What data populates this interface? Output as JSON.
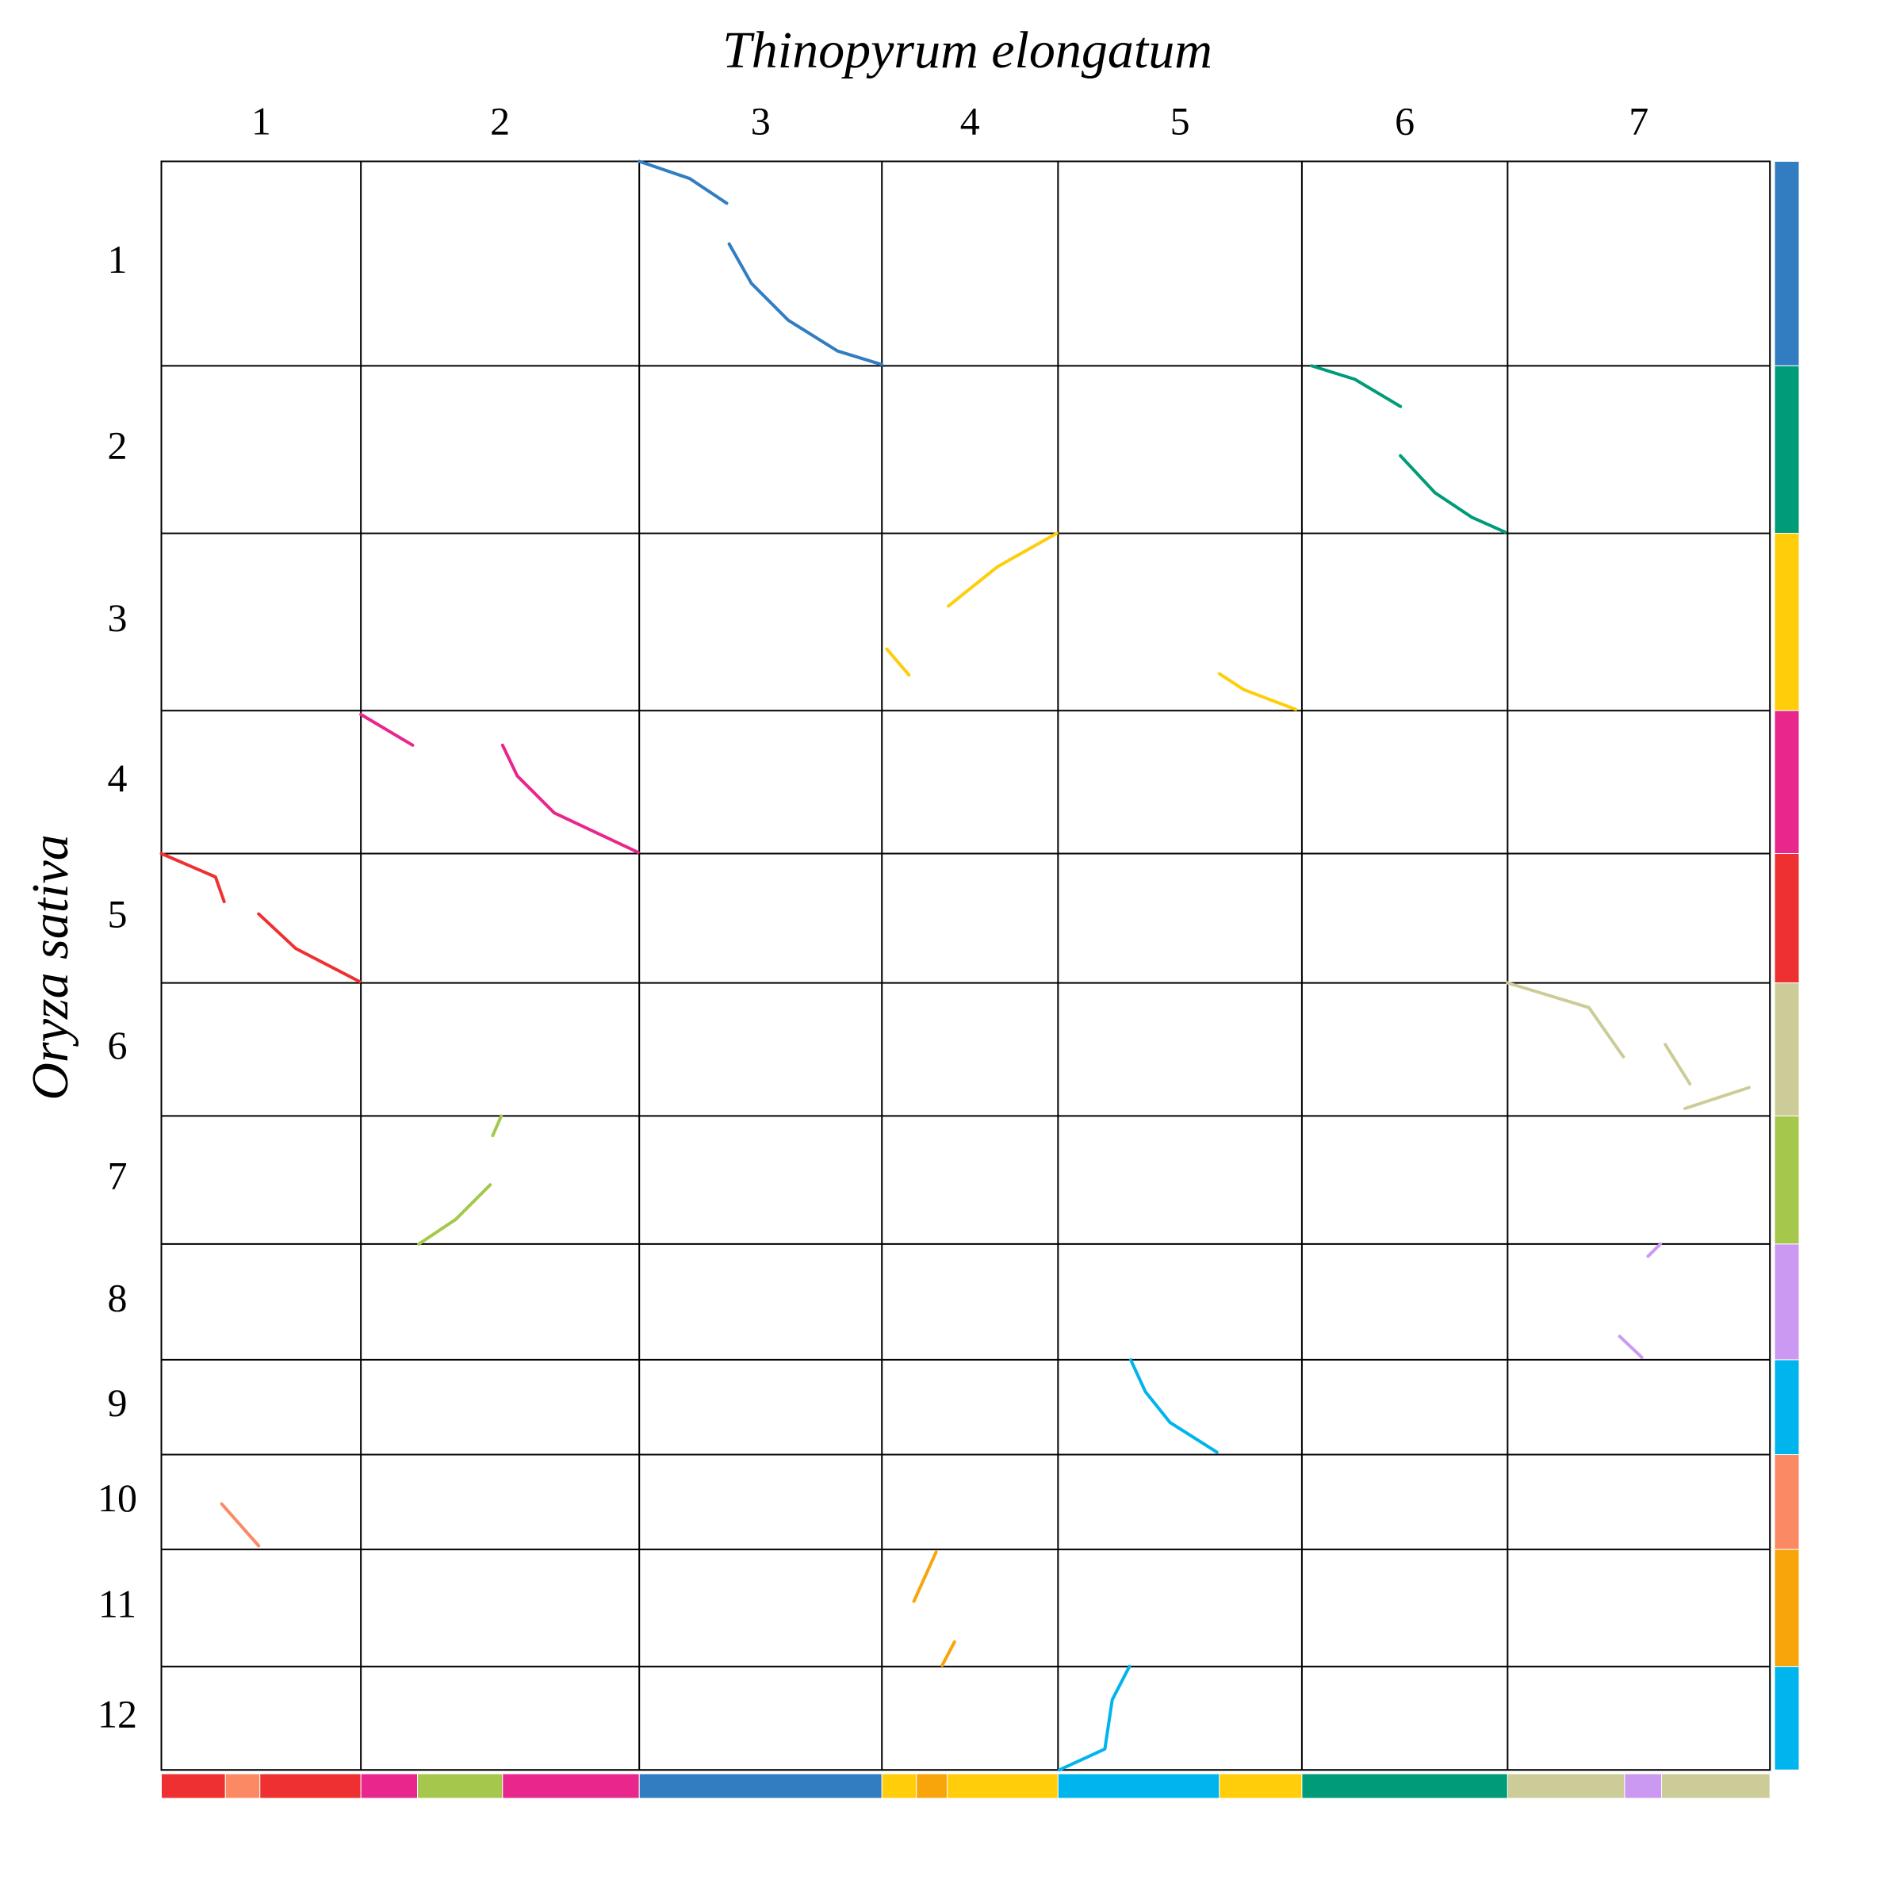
{
  "chart_data": {
    "type": "dotplot",
    "title": "Thinopyrum elongatum",
    "y_label": "Oryza sativa",
    "xlim": [
      0,
      1306
    ],
    "ylim": [
      0,
      1306
    ],
    "columns": [
      {
        "name": "1",
        "length": 162
      },
      {
        "name": "2",
        "length": 226
      },
      {
        "name": "3",
        "length": 197
      },
      {
        "name": "4",
        "length": 143
      },
      {
        "name": "5",
        "length": 198
      },
      {
        "name": "6",
        "length": 167
      },
      {
        "name": "7",
        "length": 213
      }
    ],
    "rows": [
      {
        "name": "1",
        "length": 166,
        "color": "#327dc2"
      },
      {
        "name": "2",
        "length": 136,
        "color": "#009b78"
      },
      {
        "name": "3",
        "length": 144,
        "color": "#ffcd0a"
      },
      {
        "name": "4",
        "length": 116,
        "color": "#e9268c"
      },
      {
        "name": "5",
        "length": 105,
        "color": "#ee3030"
      },
      {
        "name": "6",
        "length": 108,
        "color": "#cccc99"
      },
      {
        "name": "7",
        "length": 104,
        "color": "#a5c84c"
      },
      {
        "name": "8",
        "length": 94,
        "color": "#cc99f2"
      },
      {
        "name": "9",
        "length": 77,
        "color": "#00b4ee"
      },
      {
        "name": "10",
        "length": 77,
        "color": "#fb8a64"
      },
      {
        "name": "11",
        "length": 95,
        "color": "#f8a40b"
      },
      {
        "name": "12",
        "length": 84,
        "color": "#00b4ee"
      }
    ],
    "x_bands": [
      {
        "start": 0,
        "end": 52,
        "color": "#ee3030"
      },
      {
        "start": 52,
        "end": 80,
        "color": "#fb8a64"
      },
      {
        "start": 80,
        "end": 162,
        "color": "#ee3030"
      },
      {
        "start": 162,
        "end": 208,
        "color": "#e9268c"
      },
      {
        "start": 208,
        "end": 277,
        "color": "#a5c84c"
      },
      {
        "start": 277,
        "end": 388,
        "color": "#e9268c"
      },
      {
        "start": 388,
        "end": 585,
        "color": "#327dc2"
      },
      {
        "start": 585,
        "end": 613,
        "color": "#ffcd0a"
      },
      {
        "start": 613,
        "end": 638,
        "color": "#f8a40b"
      },
      {
        "start": 638,
        "end": 728,
        "color": "#ffcd0a"
      },
      {
        "start": 728,
        "end": 859,
        "color": "#00b4ee"
      },
      {
        "start": 859,
        "end": 926,
        "color": "#ffcd0a"
      },
      {
        "start": 926,
        "end": 1093,
        "color": "#009b78"
      },
      {
        "start": 1093,
        "end": 1188,
        "color": "#cccc99"
      },
      {
        "start": 1188,
        "end": 1218,
        "color": "#cc99f2"
      },
      {
        "start": 1218,
        "end": 1306,
        "color": "#cccc99"
      }
    ],
    "segments": [
      {
        "color": "#327dc2",
        "x": [
          388,
          429,
          459,
          null,
          461,
          479,
          509,
          549,
          585
        ],
        "y": [
          0,
          14,
          34,
          null,
          67,
          99,
          129,
          154,
          165
        ]
      },
      {
        "color": "#009b78",
        "x": [
          934,
          969,
          1006,
          null,
          1006,
          1034,
          1064,
          1091
        ],
        "y": [
          166,
          177,
          199,
          null,
          239,
          269,
          289,
          301
        ]
      },
      {
        "color": "#ffcd0a",
        "x": [
          589,
          607,
          null,
          639,
          679,
          727,
          null,
          859,
          879,
          921
        ],
        "y": [
          396,
          417,
          null,
          361,
          329,
          302,
          null,
          416,
          429,
          445
        ]
      },
      {
        "color": "#e9268c",
        "x": [
          162,
          204,
          null,
          277,
          289,
          319,
          387
        ],
        "y": [
          449,
          474,
          null,
          474,
          499,
          529,
          561
        ]
      },
      {
        "color": "#ee3030",
        "x": [
          0,
          44,
          51,
          null,
          79,
          109,
          161
        ],
        "y": [
          562,
          581,
          601,
          null,
          611,
          639,
          666
        ]
      },
      {
        "color": "#cccc99",
        "x": [
          1093,
          1159,
          1187,
          null,
          1221,
          1241,
          null,
          1237,
          1289
        ],
        "y": [
          667,
          687,
          727,
          null,
          717,
          749,
          null,
          769,
          752
        ]
      },
      {
        "color": "#a5c84c",
        "x": [
          276,
          269,
          null,
          267,
          239,
          209
        ],
        "y": [
          775,
          791,
          null,
          831,
          859,
          879
        ]
      },
      {
        "color": "#cc99f2",
        "x": [
          1217,
          1207,
          null,
          1184,
          1202
        ],
        "y": [
          879,
          889,
          null,
          954,
          971
        ]
      },
      {
        "color": "#00b4ee",
        "x": [
          787,
          799,
          819,
          857
        ],
        "y": [
          973,
          999,
          1024,
          1048
        ]
      },
      {
        "color": "#fb8a64",
        "x": [
          49,
          79
        ],
        "y": [
          1090,
          1124
        ]
      },
      {
        "color": "#f8a40b",
        "x": [
          629,
          611,
          null,
          644,
          634
        ],
        "y": [
          1129,
          1169,
          null,
          1202,
          1221
        ]
      },
      {
        "color": "#00b4ee",
        "x": [
          786,
          772,
          766,
          729
        ],
        "y": [
          1222,
          1249,
          1289,
          1306
        ]
      }
    ]
  }
}
